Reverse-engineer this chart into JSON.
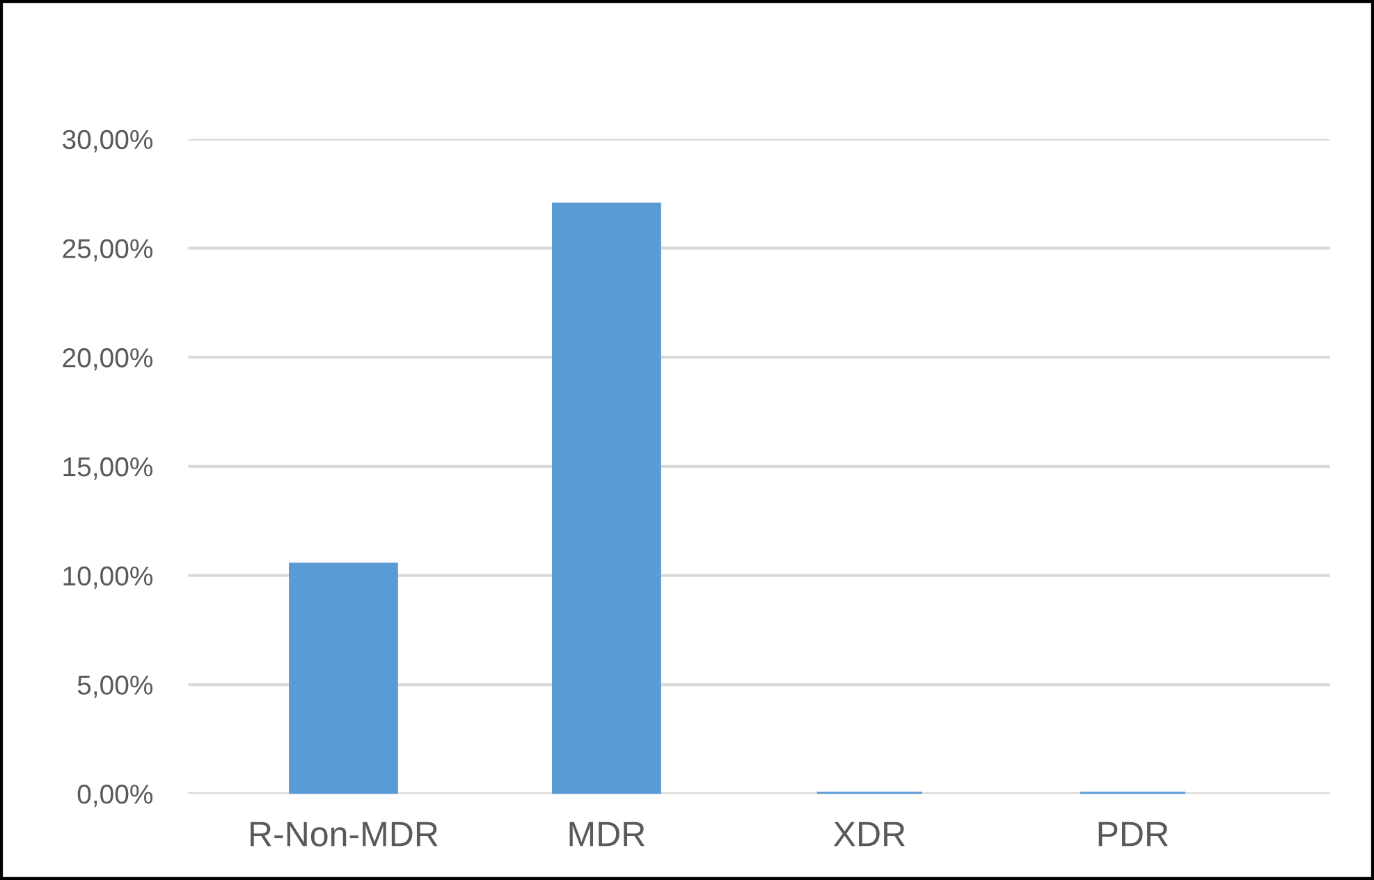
{
  "chart_data": {
    "type": "bar",
    "categories": [
      "R-Non-MDR",
      "MDR",
      "XDR",
      "PDR"
    ],
    "values": [
      10.5,
      27.0,
      0,
      0
    ],
    "color": "#5b9bd5",
    "ylim": [
      0,
      30
    ],
    "yticks": [
      {
        "value": 0,
        "label": "0,00%"
      },
      {
        "value": 5,
        "label": "5,00%"
      },
      {
        "value": 10,
        "label": "10,00%"
      },
      {
        "value": 15,
        "label": "15,00%"
      },
      {
        "value": 20,
        "label": "20,00%"
      },
      {
        "value": 25,
        "label": "25,00%"
      },
      {
        "value": 30,
        "label": "30,00%"
      }
    ],
    "grid": "y"
  }
}
